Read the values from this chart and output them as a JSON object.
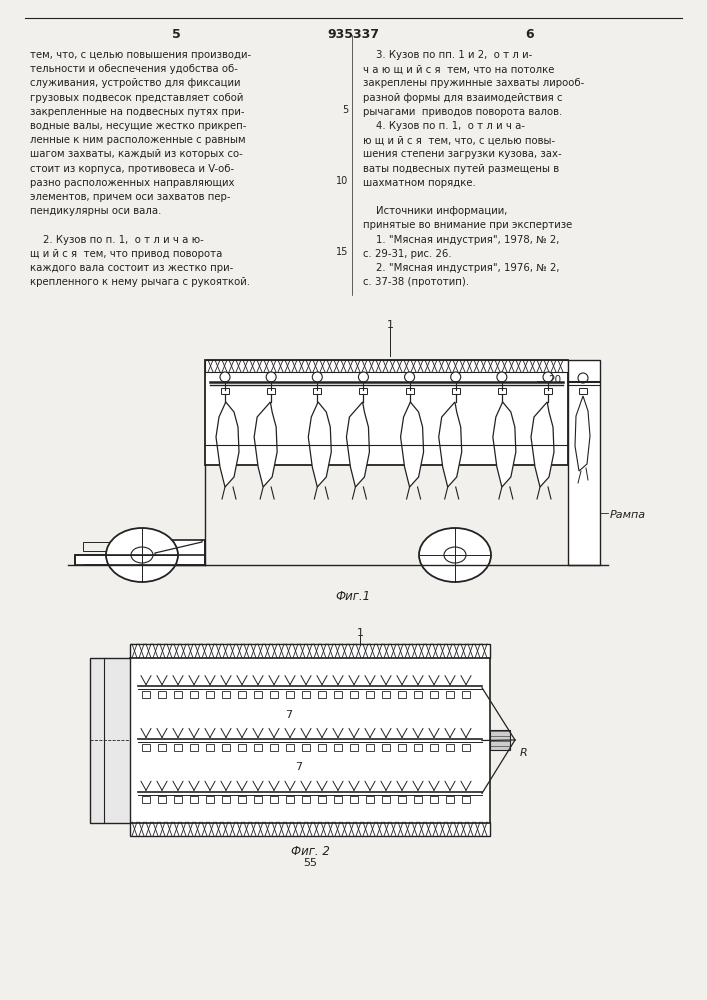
{
  "bg_color": "#f2f0ec",
  "line_color": "#222222",
  "text_color": "#222222",
  "page_width": 7.07,
  "page_height": 10.0,
  "left_col_lines": [
    "тем, что, с целью повышения производи-",
    "тельности и обеспечения удобства об-",
    "служивания, устройство для фиксации",
    "грузовых подвесок представляет собой",
    "закрепленные на подвесных путях при-",
    "водные валы, несущие жестко прикреп-",
    "ленные к ним расположенные с равным",
    "шагом захваты, каждый из которых со-",
    "стоит из корпуса, противовеса и V-об-",
    "разно расположенных направляющих",
    "элементов, причем оси захватов пер-",
    "пендикулярны оси вала.",
    "",
    "    2. Кузов по п. 1,  о т л и ч а ю-",
    "щ и й с я  тем, что привод поворота",
    "каждого вала состоит из жестко при-",
    "крепленного к нему рычага с рукояткой."
  ],
  "right_col_lines": [
    "    3. Кузов по пп. 1 и 2,  о т л и-",
    "ч а ю щ и й с я  тем, что на потолке",
    "закреплены пружинные захваты лирооб-",
    "разной формы для взаимодействия с",
    "рычагами  приводов поворота валов.",
    "    4. Кузов по п. 1,  о т л и ч а-",
    "ю щ и й с я  тем, что, с целью повы-",
    "шения степени загрузки кузова, зах-",
    "ваты подвесных путей размещены в",
    "шахматном порядке.",
    "",
    "    Источники информации,",
    "принятые во внимание при экспертизе",
    "    1. \"Мясная индустрия\", 1978, № 2,",
    "с. 29-31, рис. 26.",
    "    2. \"Мясная индустрия\", 1976, № 2,",
    "с. 37-38 (прототип)."
  ]
}
